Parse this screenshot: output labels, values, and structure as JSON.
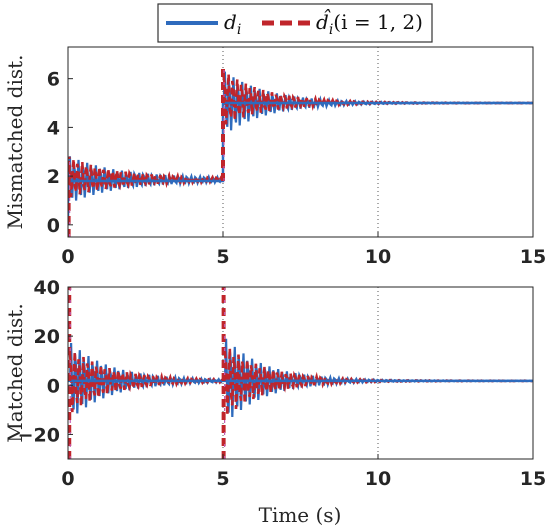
{
  "legend": {
    "entries": [
      {
        "label": "d",
        "subscript": "i",
        "style": "solid",
        "color": "#2e6bbd"
      },
      {
        "label": "d̂",
        "subscript": "i",
        "suffix": "(i = 1, 2)",
        "style": "dashed",
        "color": "#c0252b"
      }
    ]
  },
  "chart_data": [
    {
      "type": "line",
      "ylabel": "Mismatched dist.",
      "xlabel": "",
      "xlim": [
        0,
        15
      ],
      "ylim": [
        -0.5,
        7.3
      ],
      "xticks": [
        "0",
        "5",
        "10",
        "15"
      ],
      "yticks": [
        "0",
        "2",
        "4",
        "6"
      ],
      "grid": false,
      "vlines": [
        5,
        10
      ],
      "series": [
        {
          "name": "d_i",
          "color": "#2e6bbd",
          "x": [
            0,
            0,
            5,
            5,
            15
          ],
          "y": [
            0,
            1.8,
            1.8,
            5.0,
            5.0
          ]
        },
        {
          "name": "d̂_i (i=1,2)",
          "color": "#c0252b",
          "behavior": "oscillating estimate converging to d_i",
          "x": [
            0,
            0.3,
            5,
            5.3,
            10,
            15
          ],
          "y": [
            0,
            2.8,
            1.9,
            6.3,
            5.0,
            5.0
          ]
        }
      ]
    },
    {
      "type": "line",
      "ylabel": "Matched dist.",
      "xlabel": "Time (s)",
      "xlim": [
        0,
        15
      ],
      "ylim": [
        -30,
        40
      ],
      "xticks": [
        "0",
        "5",
        "10",
        "15"
      ],
      "yticks": [
        "-20",
        "0",
        "20",
        "40"
      ],
      "grid": false,
      "vlines": [
        5,
        10
      ],
      "series": [
        {
          "name": "d_i",
          "color": "#2e6bbd",
          "x": [
            0,
            5,
            10,
            15
          ],
          "y": [
            1.8,
            1.8,
            1.8,
            1.8
          ]
        },
        {
          "name": "d̂_i (i=1,2)",
          "color": "#c0252b",
          "behavior": "spikes at 0 and 5 then damped oscillation",
          "x": [
            0,
            0.3,
            5,
            5.3,
            10,
            15
          ],
          "y": [
            40,
            10,
            2,
            40,
            2,
            2
          ]
        }
      ]
    }
  ]
}
